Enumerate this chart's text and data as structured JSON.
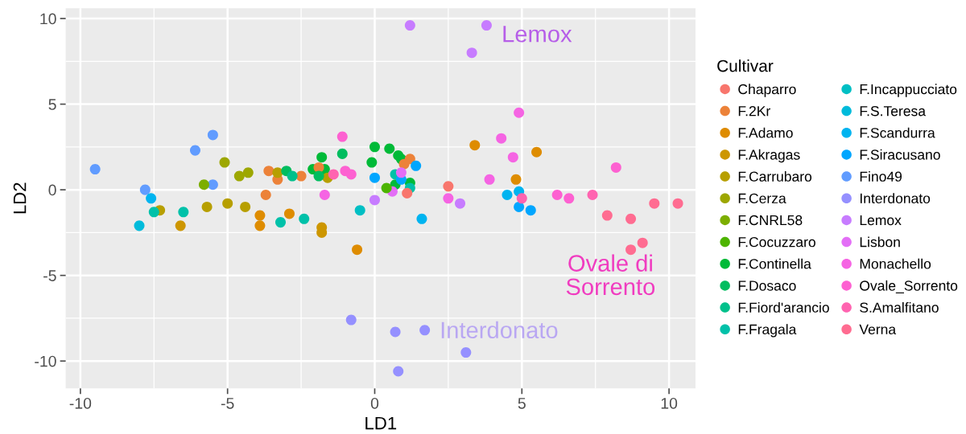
{
  "chart_data": {
    "type": "scatter",
    "xlabel": "LD1",
    "ylabel": "LD2",
    "legend_title": "Cultivar",
    "legend": "right",
    "grid": true,
    "marker": "circle",
    "xlim": [
      -10.5,
      10.9
    ],
    "ylim": [
      -11.6,
      10.6
    ],
    "xticks": [
      -10,
      -5,
      0,
      5,
      10
    ],
    "yticks": [
      -10,
      -5,
      0,
      5,
      10
    ],
    "series": [
      {
        "name": "Chaparro",
        "color": "#f8766d",
        "x": [
          1.1,
          2.5
        ],
        "values": [
          -0.2,
          0.2
        ]
      },
      {
        "name": "F.2Kr",
        "color": "#ec8239",
        "x": [
          -3.7,
          -3.6,
          -3.3,
          -2.5,
          -1.9,
          1.2,
          1.0
        ],
        "values": [
          -0.3,
          1.1,
          0.6,
          0.8,
          1.3,
          1.8,
          1.5
        ]
      },
      {
        "name": "F.Adamo",
        "color": "#de8c00",
        "x": [
          -3.9,
          -3.9,
          -2.9,
          -0.6,
          3.4,
          5.5,
          4.8
        ],
        "values": [
          -1.5,
          -2.1,
          -1.4,
          -3.5,
          2.6,
          2.2,
          0.6
        ]
      },
      {
        "name": "F.Akragas",
        "color": "#cd9600",
        "x": [
          -6.6,
          -1.8,
          -1.8
        ],
        "values": [
          -2.1,
          -2.2,
          -2.5
        ]
      },
      {
        "name": "F.Carrubaro",
        "color": "#b79f00",
        "x": [
          -7.3,
          -5.7,
          -5.0,
          -4.4,
          -3.3,
          -1.6
        ],
        "values": [
          -1.2,
          -1.0,
          -0.8,
          -1.0,
          1.0,
          0.7
        ]
      },
      {
        "name": "F.Cerza",
        "color": "#9da700",
        "x": [
          -5.1,
          -4.6,
          -4.3
        ],
        "values": [
          1.6,
          0.8,
          1.0
        ]
      },
      {
        "name": "F.CNRL58",
        "color": "#7cae00",
        "x": [
          -5.8
        ],
        "values": [
          0.3
        ]
      },
      {
        "name": "F.Cocuzzaro",
        "color": "#4db400",
        "x": [
          0.4
        ],
        "values": [
          0.1
        ]
      },
      {
        "name": "F.Continella",
        "color": "#00ba38",
        "x": [
          -2.1,
          -1.8,
          -1.7,
          -0.1,
          0.0,
          0.5,
          0.8,
          0.9,
          1.2,
          0.7
        ],
        "values": [
          1.2,
          1.9,
          1.2,
          1.6,
          2.5,
          2.4,
          2.0,
          1.8,
          0.4,
          0.3
        ]
      },
      {
        "name": "F.Dosaco",
        "color": "#00bd5f",
        "x": [
          -3.0,
          -1.9,
          -1.1
        ],
        "values": [
          1.1,
          0.8,
          2.1
        ]
      },
      {
        "name": "F.Fiord'arancio",
        "color": "#00c08b",
        "x": [
          -2.8
        ],
        "values": [
          0.8
        ]
      },
      {
        "name": "F.Fragala",
        "color": "#00c1a9",
        "x": [
          -7.5,
          -6.5,
          -3.2,
          -2.4,
          0.7,
          1.2
        ],
        "values": [
          -1.3,
          -1.3,
          -1.9,
          -1.7,
          0.9,
          0.1
        ]
      },
      {
        "name": "F.Incappucciato",
        "color": "#00bfc4",
        "x": [
          -0.5
        ],
        "values": [
          -1.2
        ]
      },
      {
        "name": "F.S.Teresa",
        "color": "#00bbdb",
        "x": [
          -8.0
        ],
        "values": [
          -2.1
        ]
      },
      {
        "name": "F.Scandurra",
        "color": "#00b4f0",
        "x": [
          -7.6,
          1.6,
          4.5,
          4.9
        ],
        "values": [
          -0.5,
          -1.7,
          -0.3,
          -0.1
        ]
      },
      {
        "name": "F.Siracusano",
        "color": "#00a6ff",
        "x": [
          0.0,
          1.4,
          0.9,
          4.9,
          5.3
        ],
        "values": [
          0.7,
          1.4,
          0.6,
          -1.0,
          -1.2
        ]
      },
      {
        "name": "Fino49",
        "color": "#619cff",
        "x": [
          -9.5,
          -7.8,
          -6.1,
          -5.5,
          -5.5
        ],
        "values": [
          1.2,
          0.0,
          2.3,
          3.2,
          0.3
        ]
      },
      {
        "name": "Interdonato",
        "color": "#9590ff",
        "x": [
          -0.8,
          0.7,
          1.7,
          3.1,
          0.8
        ],
        "values": [
          -7.6,
          -8.3,
          -8.2,
          -9.5,
          -10.6
        ]
      },
      {
        "name": "Lemox",
        "color": "#c77cff",
        "x": [
          0.0,
          2.9,
          1.2,
          3.8,
          3.3
        ],
        "values": [
          -0.6,
          -0.8,
          9.6,
          9.6,
          8.0
        ]
      },
      {
        "name": "Lisbon",
        "color": "#e36ef6",
        "x": [
          0.9,
          0.6
        ],
        "values": [
          1.0,
          -0.1
        ]
      },
      {
        "name": "Monachello",
        "color": "#f564e3",
        "x": [
          -1.7,
          4.9,
          4.3,
          4.7,
          2.5,
          3.9
        ],
        "values": [
          -0.3,
          4.5,
          3.0,
          1.9,
          -0.5,
          0.6
        ]
      },
      {
        "name": "Ovale_Sorrento",
        "color": "#fd61d1",
        "x": [
          -1.1,
          -1.0,
          -0.8,
          6.2,
          6.6,
          8.2
        ],
        "values": [
          3.1,
          1.1,
          0.9,
          -0.3,
          -0.5,
          1.3
        ]
      },
      {
        "name": "S.Amalfitano",
        "color": "#ff64b0",
        "x": [
          -1.4,
          5.0,
          7.4
        ],
        "values": [
          0.9,
          -0.5,
          -0.3
        ]
      },
      {
        "name": "Verna",
        "color": "#ff6c91",
        "x": [
          7.9,
          8.7,
          9.5,
          10.3,
          8.7,
          9.1
        ],
        "values": [
          -1.5,
          -1.7,
          -0.8,
          -0.8,
          -3.5,
          -3.1
        ]
      }
    ],
    "annotations": [
      "Lemox",
      "Ovale di\nSorrento",
      "Interdonato"
    ]
  }
}
